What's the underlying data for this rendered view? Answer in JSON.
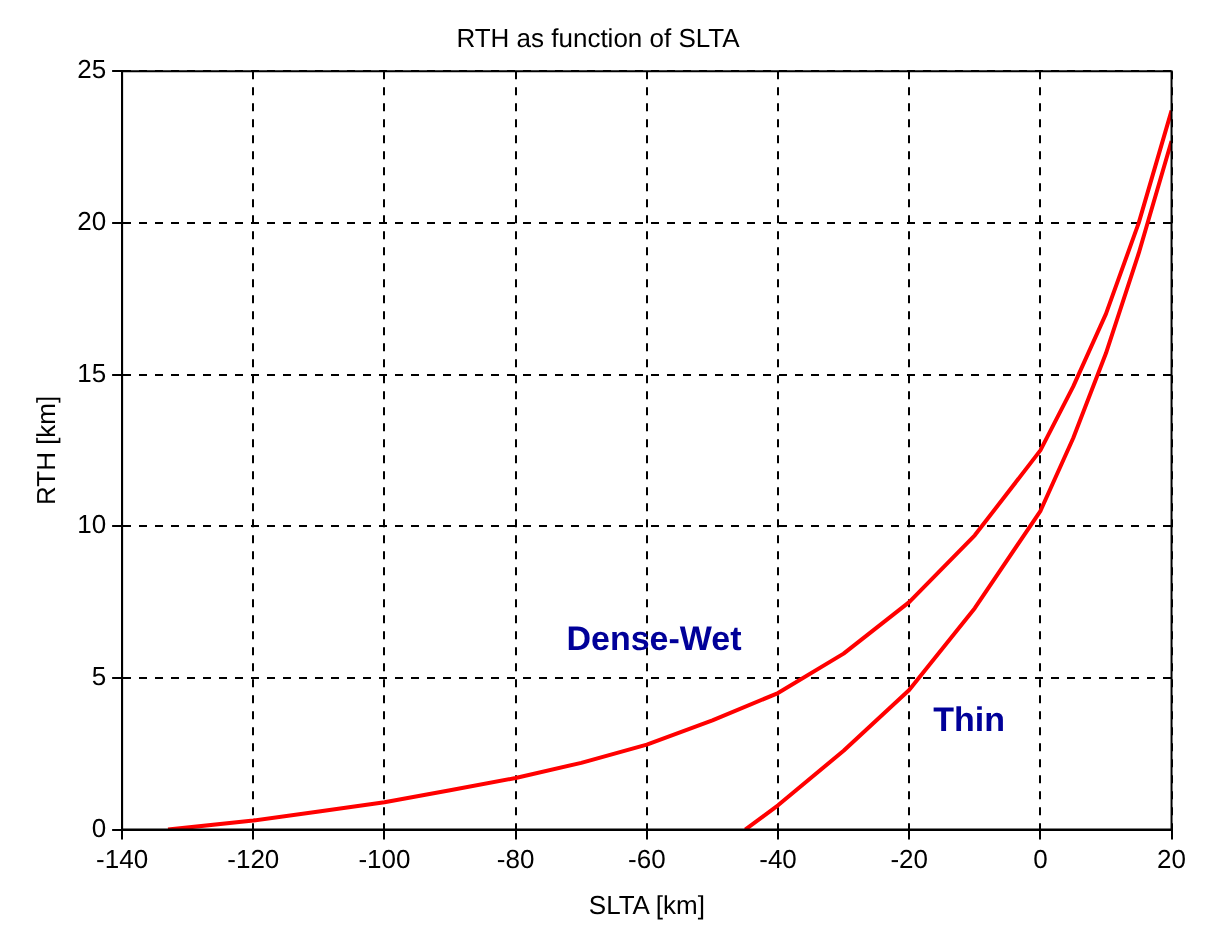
{
  "chart_data": {
    "type": "line",
    "title": "RTH as function of SLTA",
    "xlabel": "SLTA [km]",
    "ylabel": "RTH [km]",
    "xlim": [
      -140,
      20
    ],
    "xticks": [
      -140,
      -120,
      -100,
      -80,
      -60,
      -40,
      -20,
      0,
      20
    ],
    "ylim": [
      0,
      25
    ],
    "yticks": [
      0,
      5,
      10,
      15,
      20,
      25
    ],
    "grid": true,
    "legend": false,
    "marker": "none",
    "line_style": "solid",
    "series": [
      {
        "name": "Dense-Wet",
        "color": "#ff0000",
        "x": [
          -133,
          -120,
          -110,
          -100,
          -90,
          -80,
          -70,
          -60,
          -50,
          -40,
          -30,
          -20,
          -10,
          0,
          5,
          10,
          15,
          20
        ],
        "values": [
          0,
          0.3,
          0.6,
          0.9,
          1.3,
          1.7,
          2.2,
          2.8,
          3.6,
          4.5,
          5.8,
          7.5,
          9.7,
          12.5,
          14.6,
          17,
          20,
          23.7
        ]
      },
      {
        "name": "Thin",
        "color": "#ff0000",
        "x": [
          -45,
          -40,
          -30,
          -20,
          -10,
          0,
          5,
          10,
          15,
          20
        ],
        "values": [
          0,
          0.8,
          2.6,
          4.6,
          7.3,
          10.5,
          12.9,
          15.7,
          19,
          22.7
        ]
      }
    ]
  }
}
